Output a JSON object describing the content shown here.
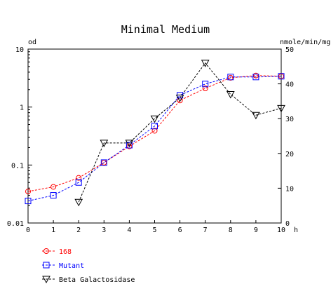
{
  "chart_data": {
    "type": "scatter",
    "title": "Minimal Medium",
    "left_axis_label": "od",
    "right_axis_label": "nmole/min/mg",
    "x_unit_label": "h",
    "x_range": [
      0,
      10
    ],
    "x_ticks": [
      "0",
      "1",
      "2",
      "3",
      "4",
      "5",
      "6",
      "7",
      "8",
      "9",
      "10"
    ],
    "left_scale": "log",
    "left_range": [
      0.01,
      10
    ],
    "left_ticks": [
      "0.01",
      "0.1",
      "1",
      "10"
    ],
    "right_range": [
      0,
      50
    ],
    "right_ticks": [
      "0",
      "10",
      "20",
      "30",
      "40",
      "50"
    ],
    "grid": false,
    "legend_position": "bottom-left",
    "series": [
      {
        "name": "168",
        "color": "#ff0000",
        "marker": "circle",
        "axis": "left",
        "x": [
          0,
          1,
          2,
          3,
          4,
          5,
          6,
          7,
          8,
          9,
          10
        ],
        "y": [
          0.035,
          0.042,
          0.06,
          0.11,
          0.21,
          0.39,
          1.3,
          2.1,
          3.2,
          3.5,
          3.4
        ]
      },
      {
        "name": "Mutant",
        "color": "#0000ff",
        "marker": "square",
        "axis": "left",
        "x": [
          0,
          1,
          2,
          3,
          4,
          5,
          6,
          7,
          8,
          9,
          10
        ],
        "y": [
          0.024,
          0.03,
          0.05,
          0.11,
          0.22,
          0.47,
          1.6,
          2.5,
          3.3,
          3.3,
          3.4
        ]
      },
      {
        "name": "Beta Galactosidase",
        "color": "#000000",
        "marker": "triangle-down",
        "axis": "right",
        "x": [
          2,
          3,
          4,
          5,
          6,
          7,
          8,
          9,
          10
        ],
        "y": [
          6,
          23,
          23,
          30,
          36,
          46,
          37,
          31,
          33
        ]
      }
    ]
  }
}
